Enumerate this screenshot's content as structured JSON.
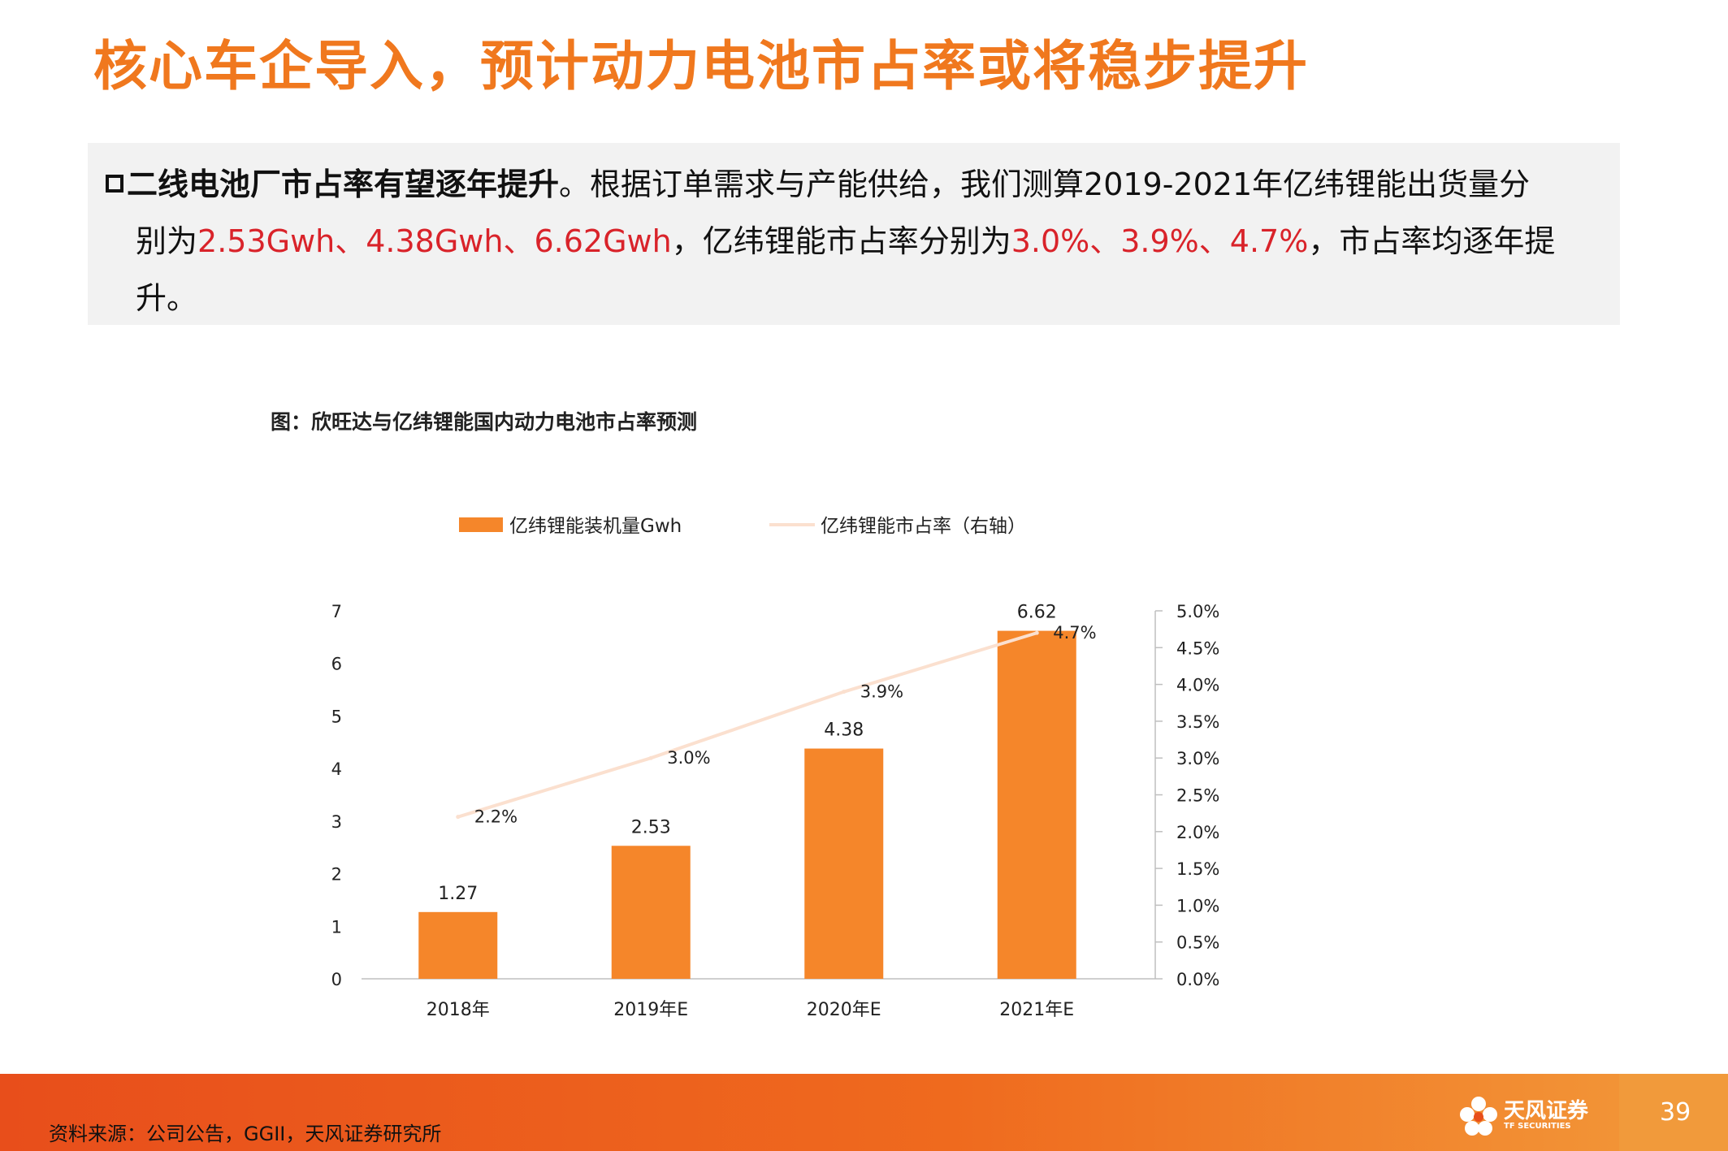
{
  "slide": {
    "title": "核心车企导入，预计动力电池市占率或将稳步提升",
    "page_number": "39"
  },
  "summary": {
    "lead": "二线电池厂市占率有望逐年提升",
    "line1_rest": "。根据订单需求与产能供给，我们测算2019-2021年亿纬锂能出货量分",
    "line2_pre": "别为",
    "line2_hl1": "2.53Gwh、4.38Gwh、6.62Gwh",
    "line2_mid": "，亿纬锂能市占率分别为",
    "line2_hl2": "3.0%、3.9%、4.7%",
    "line2_post": "，市占率均逐年提",
    "line3": "升。"
  },
  "figure": {
    "caption": "图：欣旺达与亿纬锂能国内动力电池市占率预测"
  },
  "chart_data": {
    "type": "bar",
    "categories": [
      "2018年",
      "2019年E",
      "2020年E",
      "2021年E"
    ],
    "series": [
      {
        "name": "亿纬锂能装机量Gwh",
        "type": "bar",
        "axis": "left",
        "values": [
          1.27,
          2.53,
          4.38,
          6.62
        ],
        "labels": [
          "1.27",
          "2.53",
          "4.38",
          "6.62"
        ]
      },
      {
        "name": "亿纬锂能市占率（右轴）",
        "type": "line",
        "axis": "right",
        "values": [
          2.2,
          3.0,
          3.9,
          4.7
        ],
        "labels": [
          "2.2%",
          "3.0%",
          "3.9%",
          "4.7%"
        ]
      }
    ],
    "y_left": {
      "min": 0,
      "max": 7,
      "ticks": [
        "0",
        "1",
        "2",
        "3",
        "4",
        "5",
        "6",
        "7"
      ]
    },
    "y_right": {
      "min": 0,
      "max": 5,
      "ticks": [
        "0.0%",
        "0.5%",
        "1.0%",
        "1.5%",
        "2.0%",
        "2.5%",
        "3.0%",
        "3.5%",
        "4.0%",
        "4.5%",
        "5.0%"
      ]
    },
    "legend_position": "top",
    "grid": false,
    "colors": {
      "bar": "#f5862a",
      "line": "#fbe0cf"
    }
  },
  "footer": {
    "source": "资料来源：公司公告，GGII，天风证券研究所",
    "logo_name": "天风证券",
    "logo_sub": "TF SECURITIES"
  }
}
